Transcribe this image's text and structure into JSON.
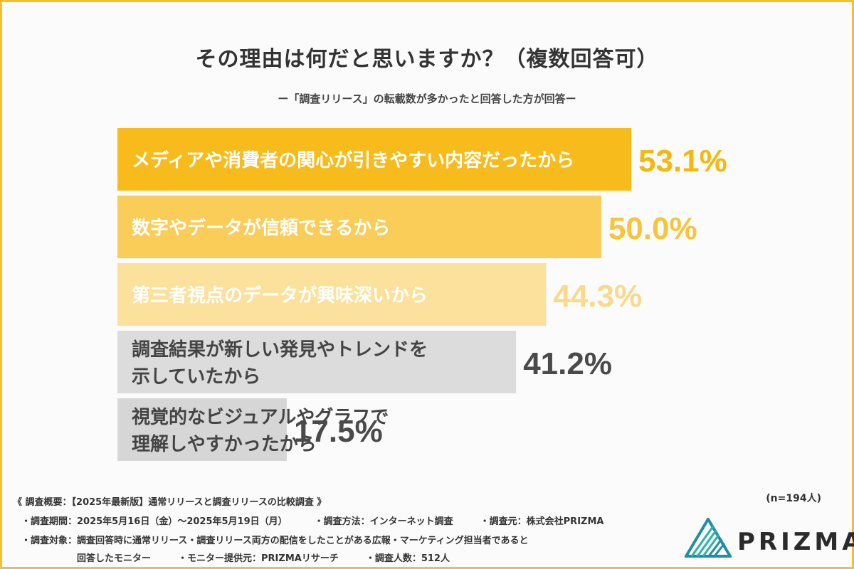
{
  "chart_data": {
    "type": "bar",
    "orientation": "horizontal",
    "title": "その理由は何だと思いますか？（複数回答可）",
    "subtitle": "ー「調査リリース」の転載数が多かったと回答した方が回答ー",
    "categories": [
      [
        "メディアや消費者の関心が引きやすい内容だったから"
      ],
      [
        "数字やデータが信頼できるから"
      ],
      [
        "第三者視点のデータが興味深いから"
      ],
      [
        "調査結果が新しい発見やトレンドを",
        "示していたから"
      ],
      [
        "視覚的なビジュアルやグラフで",
        "理解しやすかったから"
      ]
    ],
    "values": [
      53.1,
      50.0,
      44.3,
      41.2,
      17.5
    ],
    "value_labels": [
      "53.1%",
      "50.0%",
      "44.3%",
      "41.2%",
      "17.5%"
    ],
    "bar_colors": [
      "#f7bc1c",
      "#f9cd57",
      "#fbe19c",
      "#dcdcdc",
      "#d6d6d6"
    ],
    "label_colors": [
      "#ffffff",
      "#ffffff",
      "#ffffff",
      "#444444",
      "#444444"
    ],
    "value_colors": [
      "#f5b80d",
      "#f7c53c",
      "#f9d98a",
      "#4a4a4a",
      "#4a4a4a"
    ],
    "xlim": [
      0,
      53.1
    ],
    "sample": "(n=194人)"
  },
  "footer": {
    "line1": "《 調査概要：【2025年最新版】通常リリースと調査リリースの比較調査 》",
    "line2a": "・調査期間：2025年5月16日（金）〜2025年5月19日（月）",
    "line2b": "・調査方法：インターネット調査",
    "line2c": "・調査元：株式会社PRIZMA",
    "line3": "・調査対象：調査回答時に通常リリース・調査リリース両方の配信をしたことがある広報・マーケティング担当者であると",
    "line4a": "回答したモニター",
    "line4b": "・モニター提供元：PRIZMAリサーチ",
    "line4c": "・調査人数：512人"
  },
  "brand": {
    "name": "PRIZMA",
    "icon": "prizma-triangle-logo-icon",
    "accent": "#f7c02b",
    "logo_colors": [
      "#1f8fa0",
      "#2bb3a8"
    ]
  }
}
